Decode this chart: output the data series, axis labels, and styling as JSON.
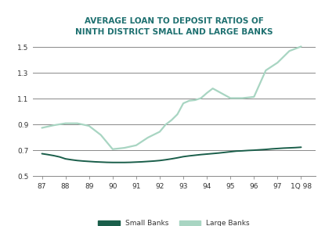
{
  "title_line1": "AVERAGE LOAN TO DEPOSIT RATIOS OF",
  "title_line2": "NINTH DISTRICT SMALL AND LARGE BANKS",
  "title_color": "#1e7070",
  "background_color": "#ffffff",
  "small_banks_color": "#1a5e4a",
  "large_banks_color": "#a8d5c2",
  "grid_color": "#888888",
  "xlim": [
    86.6,
    98.6
  ],
  "ylim": [
    0.5,
    1.55
  ],
  "yticks": [
    0.5,
    0.7,
    0.9,
    1.1,
    1.3,
    1.5
  ],
  "xtick_labels": [
    "87",
    "88",
    "89",
    "90",
    "91",
    "92",
    "93",
    "94",
    "95",
    "96",
    "97",
    "1Q 98"
  ],
  "xtick_positions": [
    87,
    88,
    89,
    90,
    91,
    92,
    93,
    94,
    95,
    96,
    97,
    98
  ],
  "small_banks_x": [
    87,
    87.25,
    87.5,
    87.75,
    88,
    88.25,
    88.5,
    88.75,
    89,
    89.25,
    89.5,
    89.75,
    90,
    90.25,
    90.5,
    90.75,
    91,
    91.25,
    91.5,
    91.75,
    92,
    92.25,
    92.5,
    92.75,
    93,
    93.25,
    93.5,
    93.75,
    94,
    94.25,
    94.5,
    94.75,
    95,
    95.25,
    95.5,
    95.75,
    96,
    96.25,
    96.5,
    96.75,
    97,
    97.25,
    97.5,
    97.75,
    98
  ],
  "small_banks_y": [
    0.675,
    0.668,
    0.66,
    0.65,
    0.635,
    0.628,
    0.622,
    0.618,
    0.615,
    0.612,
    0.61,
    0.608,
    0.607,
    0.607,
    0.607,
    0.608,
    0.61,
    0.612,
    0.615,
    0.618,
    0.622,
    0.628,
    0.635,
    0.643,
    0.652,
    0.658,
    0.663,
    0.668,
    0.672,
    0.676,
    0.68,
    0.685,
    0.69,
    0.695,
    0.697,
    0.7,
    0.702,
    0.705,
    0.708,
    0.712,
    0.715,
    0.718,
    0.72,
    0.722,
    0.725
  ],
  "large_banks_x": [
    87,
    87.5,
    88,
    88.5,
    89,
    89.5,
    90,
    90.5,
    91,
    91.5,
    92,
    92.25,
    92.5,
    92.75,
    93,
    93.25,
    93.5,
    93.75,
    94,
    94.25,
    94.5,
    95,
    95.5,
    96,
    96.5,
    97,
    97.5,
    98
  ],
  "large_banks_y": [
    0.875,
    0.895,
    0.91,
    0.91,
    0.89,
    0.82,
    0.71,
    0.72,
    0.74,
    0.8,
    0.845,
    0.9,
    0.935,
    0.98,
    1.065,
    1.085,
    1.09,
    1.105,
    1.145,
    1.18,
    1.155,
    1.105,
    1.105,
    1.115,
    1.32,
    1.38,
    1.47,
    1.505
  ],
  "legend_small": "Small Banks",
  "legend_large": "Large Banks"
}
